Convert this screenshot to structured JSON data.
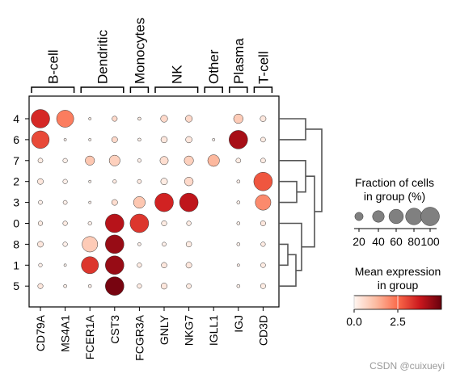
{
  "chart_data": {
    "type": "dotplot",
    "genes": [
      "CD79A",
      "MS4A1",
      "FCER1A",
      "CST3",
      "FCGR3A",
      "GNLY",
      "NKG7",
      "IGLL1",
      "IGJ",
      "CD3D"
    ],
    "groups": [
      "4",
      "6",
      "7",
      "2",
      "3",
      "0",
      "8",
      "1",
      "5"
    ],
    "gene_groups": [
      {
        "label": "B-cell",
        "genes": [
          "CD79A",
          "MS4A1"
        ]
      },
      {
        "label": "Dendritic",
        "genes": [
          "FCER1A",
          "CST3"
        ]
      },
      {
        "label": "Monocytes",
        "genes": [
          "FCGR3A"
        ]
      },
      {
        "label": "NK",
        "genes": [
          "GNLY",
          "NKG7"
        ]
      },
      {
        "label": "Other",
        "genes": [
          "IGLL1"
        ]
      },
      {
        "label": "Plasma",
        "genes": [
          "IGJ"
        ]
      },
      {
        "label": "T-cell",
        "genes": [
          "CD3D"
        ]
      }
    ],
    "fraction_percent": [
      [
        100,
        85,
        2,
        8,
        3,
        14,
        14,
        0,
        26,
        10
      ],
      [
        90,
        2,
        2,
        10,
        3,
        12,
        12,
        2,
        100,
        7
      ],
      [
        7,
        6,
        25,
        34,
        4,
        20,
        25,
        40,
        7,
        7
      ],
      [
        10,
        6,
        2,
        4,
        5,
        13,
        22,
        0,
        3,
        100
      ],
      [
        5,
        5,
        2,
        10,
        40,
        100,
        100,
        0,
        3,
        70
      ],
      [
        6,
        6,
        4,
        100,
        100,
        8,
        6,
        0,
        3,
        8
      ],
      [
        10,
        6,
        70,
        100,
        3,
        5,
        9,
        0,
        3,
        6
      ],
      [
        4,
        2,
        85,
        100,
        6,
        9,
        10,
        0,
        2,
        7
      ],
      [
        8,
        3,
        3,
        100,
        6,
        11,
        7,
        0,
        3,
        8
      ]
    ],
    "mean_expression": [
      [
        3.5,
        2.2,
        0.2,
        0.6,
        0.2,
        0.6,
        0.6,
        0.0,
        0.9,
        0.3
      ],
      [
        3.0,
        0.1,
        0.1,
        0.6,
        0.1,
        0.3,
        0.3,
        0.1,
        4.2,
        0.2
      ],
      [
        0.2,
        0.1,
        1.0,
        0.8,
        0.1,
        0.5,
        0.8,
        1.3,
        0.2,
        0.2
      ],
      [
        0.3,
        0.1,
        0.1,
        0.2,
        0.2,
        0.2,
        0.6,
        0.0,
        0.1,
        2.8
      ],
      [
        0.1,
        0.1,
        0.1,
        0.5,
        1.0,
        3.6,
        3.9,
        0.0,
        0.1,
        2.0
      ],
      [
        0.2,
        0.2,
        0.1,
        4.0,
        3.3,
        0.2,
        0.2,
        0.0,
        0.1,
        0.3
      ],
      [
        0.3,
        0.1,
        0.9,
        4.4,
        0.1,
        0.1,
        0.2,
        0.0,
        0.1,
        0.2
      ],
      [
        0.1,
        0.0,
        3.3,
        4.4,
        0.2,
        0.3,
        0.3,
        0.0,
        0.1,
        0.2
      ],
      [
        0.3,
        0.1,
        0.1,
        4.8,
        0.2,
        0.3,
        0.2,
        0.0,
        0.1,
        0.2
      ]
    ],
    "size_legend": {
      "title_line1": "Fraction of cells",
      "title_line2": "in group (%)",
      "values": [
        20,
        40,
        60,
        80,
        100
      ],
      "labels": [
        "20",
        "40",
        "60",
        "80",
        "100"
      ]
    },
    "color_legend": {
      "title_line1": "Mean expression",
      "title_line2": "in group",
      "ticks": [
        0.0,
        2.5
      ],
      "tick_labels": [
        "0.0",
        "2.5"
      ],
      "vmin": 0,
      "vmax": 5,
      "colormap": "Reds"
    },
    "dendrogram": "right"
  },
  "watermark": "CSDN @cuixueyi"
}
